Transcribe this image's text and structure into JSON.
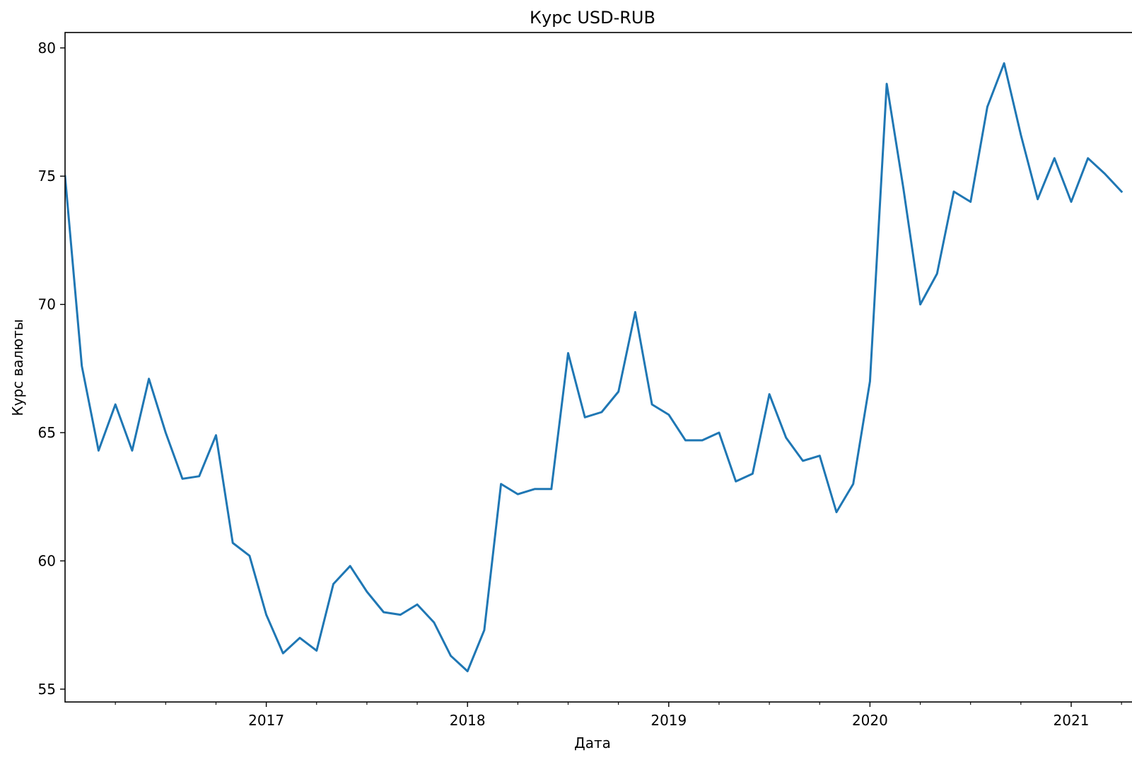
{
  "chart_data": {
    "type": "line",
    "title": "Курс USD-RUB",
    "xlabel": "Дата",
    "ylabel": "Курс валюты",
    "x_tick_labels": [
      "2017",
      "2018",
      "2019",
      "2020",
      "2021"
    ],
    "y_tick_labels": [
      "55",
      "60",
      "65",
      "70",
      "75",
      "80"
    ],
    "ylim": [
      54.5,
      80.6
    ],
    "xlim": [
      "2016-01",
      "2021-04"
    ],
    "grid": false,
    "colors": {
      "line": "#1f77b4"
    },
    "series": [
      {
        "x": [
          "2016-01",
          "2016-02",
          "2016-03",
          "2016-04",
          "2016-05",
          "2016-06",
          "2016-07",
          "2016-08",
          "2016-09",
          "2016-10",
          "2016-11",
          "2016-12",
          "2017-01",
          "2017-02",
          "2017-03",
          "2017-04",
          "2017-05",
          "2017-06",
          "2017-07",
          "2017-08",
          "2017-09",
          "2017-10",
          "2017-11",
          "2017-12",
          "2018-01",
          "2018-02",
          "2018-03",
          "2018-04",
          "2018-05",
          "2018-06",
          "2018-07",
          "2018-08",
          "2018-09",
          "2018-10",
          "2018-11",
          "2018-12",
          "2019-01",
          "2019-02",
          "2019-03",
          "2019-04",
          "2019-05",
          "2019-06",
          "2019-07",
          "2019-08",
          "2019-09",
          "2019-10",
          "2019-11",
          "2019-12",
          "2020-01",
          "2020-02",
          "2020-03",
          "2020-04",
          "2020-05",
          "2020-06",
          "2020-07",
          "2020-08",
          "2020-09",
          "2020-10",
          "2020-11",
          "2020-12",
          "2021-01",
          "2021-02",
          "2021-03",
          "2021-04"
        ],
        "values": [
          75.0,
          67.6,
          64.3,
          66.1,
          64.3,
          67.1,
          65.0,
          63.2,
          63.3,
          64.9,
          60.7,
          60.2,
          57.9,
          56.4,
          57.0,
          56.5,
          59.1,
          59.8,
          58.8,
          58.0,
          57.9,
          58.3,
          57.6,
          56.3,
          55.7,
          57.3,
          63.0,
          62.6,
          62.8,
          62.8,
          68.1,
          65.6,
          65.8,
          66.6,
          69.7,
          66.1,
          65.7,
          64.7,
          64.7,
          65.0,
          63.1,
          63.4,
          66.5,
          64.8,
          63.9,
          64.1,
          61.9,
          63.0,
          67.0,
          78.6,
          74.5,
          70.0,
          71.2,
          74.4,
          74.0,
          77.7,
          79.4,
          76.6,
          74.1,
          75.7,
          74.0,
          75.7,
          75.1,
          74.4
        ]
      }
    ]
  }
}
